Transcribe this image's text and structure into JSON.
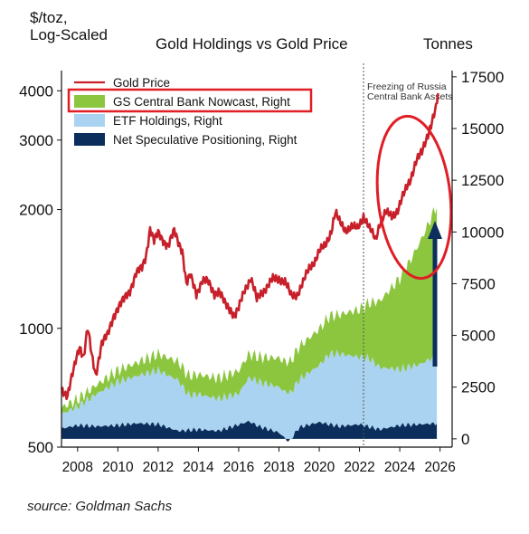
{
  "source_note": "source: Goldman Sachs",
  "colors": {
    "gold_price": "#c8202a",
    "central_bank": "#8cc63f",
    "etf": "#a9d3f0",
    "speculative": "#0b2e5c",
    "highlight_box": "#e01e26",
    "arrow": "#0b2e5c"
  },
  "chart_data": {
    "type": "area",
    "title": "Gold Holdings vs Gold Price",
    "ylabel_left": "$/toz,\nLog-Scaled",
    "ylabel_right": "Tonnes",
    "x_ticks": [
      "2008",
      "2010",
      "2012",
      "2014",
      "2016",
      "2018",
      "2020",
      "2022",
      "2024",
      "2026"
    ],
    "xlim": [
      2007.2,
      2026.6
    ],
    "left_axis": {
      "scale": "log",
      "ticks": [
        500,
        1000,
        2000,
        3000,
        4000
      ],
      "ylim": [
        500,
        4500
      ]
    },
    "right_axis": {
      "scale": "linear",
      "ticks": [
        0,
        2500,
        5000,
        7500,
        10000,
        12500,
        15000,
        17500
      ],
      "ylim": [
        -400,
        17800
      ]
    },
    "legend_position": "top-left",
    "annotation": {
      "text": "Freezing of Russia\nCentral Bank Assets",
      "x": 2022.2
    },
    "series": [
      {
        "name": "Gold Price",
        "axis": "left",
        "kind": "line",
        "x": [
          2007.2,
          2007.5,
          2007.8,
          2008.1,
          2008.3,
          2008.5,
          2008.7,
          2008.9,
          2009.2,
          2009.5,
          2009.8,
          2010.0,
          2010.3,
          2010.6,
          2010.9,
          2011.2,
          2011.4,
          2011.6,
          2011.8,
          2012.0,
          2012.2,
          2012.5,
          2012.8,
          2013.0,
          2013.2,
          2013.4,
          2013.6,
          2013.9,
          2014.2,
          2014.5,
          2014.8,
          2015.0,
          2015.3,
          2015.6,
          2015.8,
          2016.0,
          2016.3,
          2016.6,
          2016.9,
          2017.1,
          2017.4,
          2017.7,
          2018.0,
          2018.3,
          2018.6,
          2018.9,
          2019.2,
          2019.5,
          2019.8,
          2020.0,
          2020.3,
          2020.6,
          2020.8,
          2021.0,
          2021.3,
          2021.6,
          2021.9,
          2022.2,
          2022.5,
          2022.8,
          2023.0,
          2023.3,
          2023.6,
          2023.9,
          2024.2,
          2024.5,
          2024.8,
          2025.1,
          2025.4,
          2025.6,
          2025.8,
          2025.9
        ],
        "y": [
          700,
          680,
          780,
          900,
          850,
          1000,
          850,
          760,
          920,
          960,
          1080,
          1130,
          1180,
          1250,
          1380,
          1420,
          1530,
          1800,
          1660,
          1740,
          1690,
          1620,
          1760,
          1660,
          1580,
          1290,
          1360,
          1230,
          1320,
          1310,
          1230,
          1240,
          1160,
          1120,
          1070,
          1120,
          1260,
          1340,
          1180,
          1230,
          1270,
          1330,
          1340,
          1310,
          1210,
          1220,
          1300,
          1420,
          1490,
          1560,
          1620,
          1770,
          1960,
          1860,
          1780,
          1800,
          1790,
          1930,
          1780,
          1680,
          1850,
          1960,
          1920,
          2000,
          2180,
          2370,
          2650,
          2780,
          3120,
          3350,
          3600,
          3900
        ]
      },
      {
        "name": "GS Central Bank Nowcast, Right",
        "axis": "right",
        "kind": "stacked-area",
        "x": [
          2007.2,
          2008.0,
          2009.0,
          2010.0,
          2011.0,
          2012.0,
          2013.0,
          2014.0,
          2015.0,
          2016.0,
          2017.0,
          2018.0,
          2019.0,
          2020.0,
          2021.0,
          2022.0,
          2022.5,
          2023.0,
          2023.5,
          2024.0,
          2024.5,
          2025.0,
          2025.5,
          2025.9
        ],
        "values": [
          300,
          350,
          450,
          550,
          650,
          800,
          900,
          950,
          1000,
          1100,
          1200,
          1400,
          1600,
          1750,
          1900,
          2300,
          2700,
          3200,
          3800,
          4400,
          5100,
          5900,
          6700,
          7400
        ]
      },
      {
        "name": "ETF Holdings, Right",
        "axis": "right",
        "kind": "stacked-area",
        "x": [
          2007.2,
          2008.0,
          2009.0,
          2010.0,
          2011.0,
          2012.0,
          2013.0,
          2013.5,
          2014.0,
          2015.0,
          2016.0,
          2016.5,
          2017.0,
          2018.0,
          2019.0,
          2020.0,
          2020.5,
          2021.0,
          2022.0,
          2022.5,
          2023.0,
          2024.0,
          2025.0,
          2025.9
        ],
        "values": [
          700,
          900,
          1600,
          2100,
          2300,
          2600,
          2450,
          1700,
          1700,
          1550,
          1500,
          2100,
          2150,
          2200,
          2300,
          2750,
          3400,
          3500,
          3250,
          3300,
          3000,
          2700,
          2900,
          3300
        ]
      },
      {
        "name": "Net Speculative Positioning, Right",
        "axis": "right",
        "kind": "stacked-area",
        "x": [
          2007.2,
          2008.0,
          2009.0,
          2010.0,
          2011.0,
          2012.0,
          2013.0,
          2014.0,
          2015.0,
          2016.0,
          2016.5,
          2017.0,
          2018.0,
          2018.5,
          2019.0,
          2020.0,
          2021.0,
          2022.0,
          2023.0,
          2024.0,
          2025.0,
          2025.9
        ],
        "values": [
          500,
          650,
          600,
          650,
          750,
          700,
          380,
          450,
          380,
          680,
          850,
          600,
          300,
          -150,
          550,
          800,
          600,
          700,
          450,
          650,
          700,
          750
        ]
      }
    ]
  }
}
